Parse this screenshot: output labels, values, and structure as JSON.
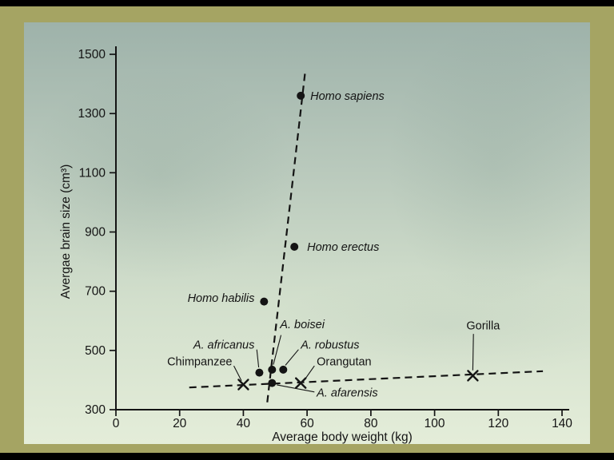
{
  "page": {
    "outer_bg": "#000000",
    "frame_color": "#a5a463",
    "panel_top_color": "#9eb2aa",
    "panel_mid1_color": "#b9c9bc",
    "panel_mid2_color": "#d2dfcc",
    "panel_bottom_color": "#e4edd9",
    "ink_color": "#141414"
  },
  "chart_data": {
    "type": "scatter",
    "title": "",
    "xlabel": "Average body weight (kg)",
    "ylabel": "Avergae brain size (cm³)",
    "xlim": [
      0,
      140
    ],
    "ylim": [
      300,
      1500
    ],
    "x_ticks": [
      0,
      20,
      40,
      60,
      80,
      100,
      120,
      140
    ],
    "y_ticks": [
      300,
      500,
      700,
      900,
      1100,
      1300,
      1500
    ],
    "grid": false,
    "legend": "none",
    "points": [
      {
        "label": "Homo sapiens",
        "species": true,
        "marker": "circle",
        "x": 58,
        "y": 1360,
        "lx": 61,
        "ly": 1360,
        "anchor": "start"
      },
      {
        "label": "Homo erectus",
        "species": true,
        "marker": "circle",
        "x": 56,
        "y": 850,
        "lx": 60,
        "ly": 850,
        "anchor": "start"
      },
      {
        "label": "Homo habilis",
        "species": true,
        "marker": "circle",
        "x": 46.5,
        "y": 665,
        "lx": 43.5,
        "ly": 678,
        "anchor": "end"
      },
      {
        "label": "A. boisei",
        "species": true,
        "marker": "circle",
        "x": 49,
        "y": 435,
        "lx": 51.5,
        "ly": 588,
        "anchor": "start",
        "leader": [
          51.8,
          552,
          49.4,
          452
        ]
      },
      {
        "label": "A. robustus",
        "species": true,
        "marker": "circle",
        "x": 52.5,
        "y": 435,
        "lx": 58,
        "ly": 520,
        "anchor": "start",
        "leader": [
          57.3,
          503,
          53.2,
          450
        ]
      },
      {
        "label": "A. africanus",
        "species": true,
        "marker": "circle",
        "x": 45,
        "y": 425,
        "lx": 43.5,
        "ly": 520,
        "anchor": "end",
        "leader": [
          44.2,
          503,
          44.8,
          443
        ]
      },
      {
        "label": "A. afarensis",
        "species": true,
        "marker": "circle",
        "x": 49,
        "y": 390,
        "lx": 63,
        "ly": 358,
        "anchor": "start",
        "leader": [
          62.3,
          360,
          50.5,
          384
        ]
      },
      {
        "label": "Chimpanzee",
        "species": false,
        "marker": "x",
        "x": 40,
        "y": 385,
        "lx": 36.5,
        "ly": 463,
        "anchor": "end",
        "leader": [
          37,
          448,
          39.4,
          398
        ]
      },
      {
        "label": "Orangutan",
        "species": false,
        "marker": "x",
        "x": 58,
        "y": 390,
        "lx": 63,
        "ly": 463,
        "anchor": "start",
        "leader": [
          62.3,
          448,
          59.2,
          401
        ]
      },
      {
        "label": "Gorilla",
        "species": false,
        "marker": "x",
        "x": 112,
        "y": 415,
        "lx": 110,
        "ly": 585,
        "anchor": "start",
        "leader": [
          112.2,
          556,
          112,
          433
        ]
      }
    ],
    "trend_lines": [
      {
        "name": "hominid-trend",
        "style": "dashed",
        "from": [
          47.5,
          325
        ],
        "to": [
          59.5,
          1450
        ]
      },
      {
        "name": "ape-trend",
        "style": "dashed",
        "from": [
          23,
          375
        ],
        "to": [
          134,
          430
        ]
      }
    ]
  }
}
